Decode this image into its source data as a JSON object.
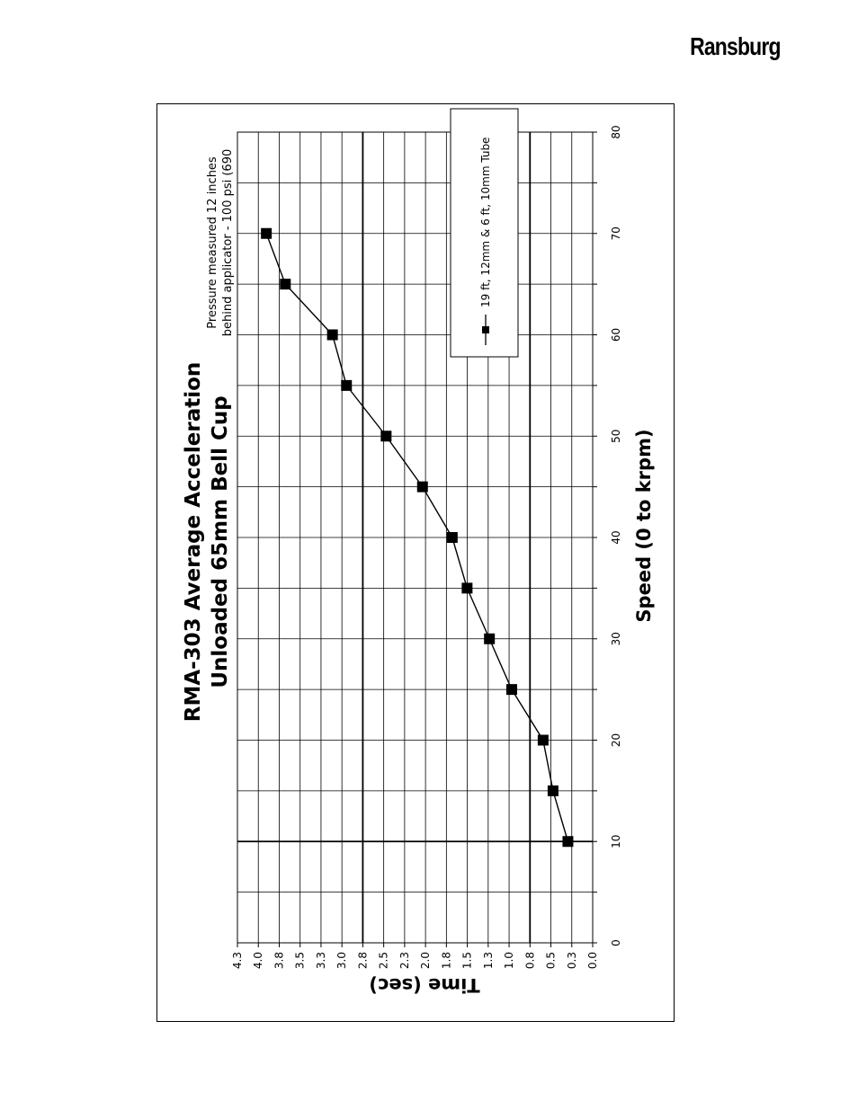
{
  "header": {
    "brand": "Ransburg"
  },
  "chart_data": {
    "type": "line",
    "orientation": "rotated 90° counter-clockwise",
    "title": "RMA-303 Average Acceleration",
    "subtitle": "Unloaded 65mm Bell Cup",
    "xlabel": "Speed (0 to krpm)",
    "ylabel": "Time (sec)",
    "xlim": [
      0,
      80
    ],
    "ylim": [
      0,
      4.3
    ],
    "x_ticks": [
      "0",
      "10",
      "20",
      "30",
      "40",
      "50",
      "60",
      "70",
      "80"
    ],
    "y_ticks": [
      "0.0",
      "0.3",
      "0.5",
      "0.8",
      "1.0",
      "1.3",
      "1.5",
      "1.8",
      "2.0",
      "2.3",
      "2.5",
      "2.8",
      "3.0",
      "3.3",
      "3.5",
      "3.8",
      "4.0",
      "4.3"
    ],
    "grid": true,
    "annotation_lines": [
      "Pressure measured 12 inches",
      "behind applicator - 100 psi (690"
    ],
    "legend_position": "top-right",
    "series": [
      {
        "name": "19 ft, 12mm & 6 ft, 10mm Tube",
        "x": [
          10,
          15,
          20,
          25,
          30,
          35,
          40,
          45,
          50,
          55,
          60,
          65,
          70
        ],
        "values": [
          0.3,
          0.48,
          0.6,
          0.98,
          1.25,
          1.52,
          1.7,
          2.06,
          2.5,
          2.98,
          3.15,
          3.72,
          3.95
        ]
      }
    ]
  }
}
